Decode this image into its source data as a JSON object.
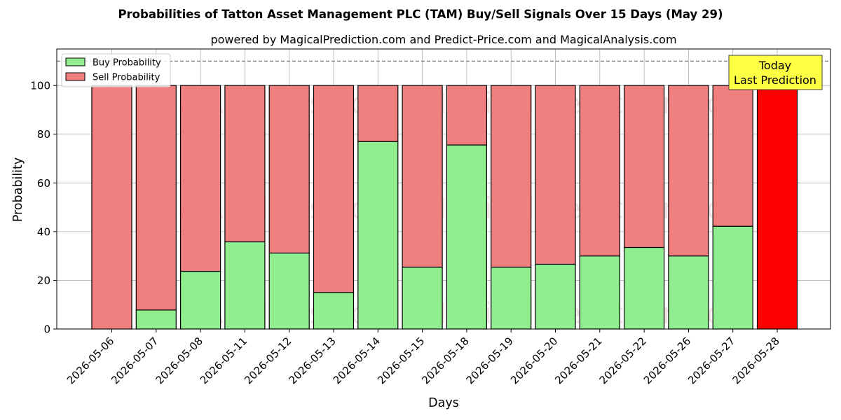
{
  "chart_data": {
    "type": "bar",
    "stacked": true,
    "title": "Probabilities of Tatton Asset Management PLC (TAM) Buy/Sell Signals Over 15 Days (May 29)",
    "subtitle": "powered by MagicalPrediction.com and Predict-Price.com and MagicalAnalysis.com",
    "xlabel": "Days",
    "ylabel": "Probability",
    "ylim": [
      0,
      115
    ],
    "yticks": [
      0,
      20,
      40,
      60,
      80,
      100
    ],
    "grid": true,
    "legend_placement": "top-left",
    "categories": [
      "2026-05-06",
      "2026-05-07",
      "2026-05-08",
      "2026-05-11",
      "2026-05-12",
      "2026-05-13",
      "2026-05-14",
      "2026-05-15",
      "2026-05-18",
      "2026-05-19",
      "2026-05-20",
      "2026-05-21",
      "2026-05-22",
      "2026-05-26",
      "2026-05-27",
      "2026-05-28"
    ],
    "series": [
      {
        "name": "Buy Probability",
        "color": "#90ee90",
        "values": [
          0,
          7.8,
          23.7,
          35.8,
          31.2,
          15.0,
          77.0,
          25.4,
          75.6,
          25.4,
          26.6,
          30.0,
          33.5,
          30.0,
          42.2,
          0
        ]
      },
      {
        "name": "Sell Probability",
        "color": "#f08080",
        "values": [
          100,
          92.2,
          76.3,
          64.2,
          68.8,
          85.0,
          23.0,
          74.6,
          24.4,
          74.6,
          73.4,
          70.0,
          66.5,
          70.0,
          57.8,
          100
        ]
      }
    ],
    "highlight": {
      "category": "2026-05-28",
      "color": "#ff0000"
    },
    "reference_line": {
      "y": 110,
      "style": "dashed",
      "color": "#808080"
    },
    "annotation": {
      "lines": [
        "Today",
        "Last Prediction"
      ],
      "background": "#ffff44"
    },
    "watermarks": [
      "MagicalAnalysis.com",
      "MagicalPrediction.com"
    ]
  }
}
